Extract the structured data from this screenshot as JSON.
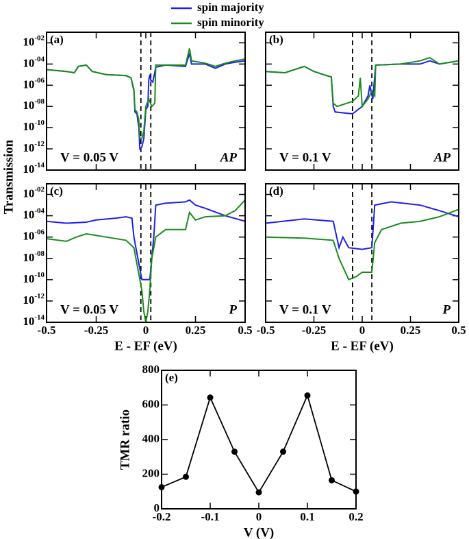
{
  "chart_data": [
    {
      "type": "line",
      "label": "(a)",
      "bias_label": "V = 0.05 V",
      "config_label": "AP",
      "ylabel": "Transmission",
      "log_y": true,
      "xlim": [
        -0.5,
        0.5
      ],
      "ylim": [
        1e-14,
        0.1
      ],
      "show_xticklabels": false,
      "show_yticklabels": true,
      "xticks": [
        -0.5,
        -0.25,
        0,
        0.25,
        0.5
      ],
      "yticks": [
        {
          "value": 1e-14,
          "label": "10-14"
        },
        {
          "value": 1e-12,
          "label": "10-12"
        },
        {
          "value": 1e-10,
          "label": "10-10"
        },
        {
          "value": 1e-08,
          "label": "10-08"
        },
        {
          "value": 1e-06,
          "label": "10-06"
        },
        {
          "value": 0.0001,
          "label": "10-04"
        },
        {
          "value": 0.01,
          "label": "10-02"
        }
      ],
      "vlines": [
        -0.025,
        0.025
      ],
      "series": [
        {
          "name": "spin majority",
          "color": "#1f1fee",
          "x": [
            -0.5,
            -0.4,
            -0.36,
            -0.34,
            -0.3,
            -0.27,
            -0.2,
            -0.1,
            -0.075,
            -0.06,
            -0.055,
            -0.045,
            -0.035,
            -0.03,
            -0.02,
            -0.01,
            0,
            0.01,
            0.015,
            0.02,
            0.025,
            0.035,
            0.05,
            0.1,
            0.2,
            0.22,
            0.23,
            0.3,
            0.35,
            0.4,
            0.45,
            0.5
          ],
          "values": [
            3e-05,
            2e-05,
            1.5e-05,
            6e-05,
            8e-05,
            2e-05,
            1e-05,
            8e-06,
            5e-06,
            3e-07,
            3e-09,
            2e-09,
            1e-10,
            1e-12,
            1.5e-12,
            1e-11,
            5e-09,
            1e-08,
            3e-06,
            1e-05,
            3e-06,
            2e-06,
            5e-05,
            8e-05,
            6e-05,
            0.001,
            0.0001,
            0.0001,
            4e-05,
            0.0001,
            0.00015,
            0.0002
          ]
        },
        {
          "name": "spin minority",
          "color": "#1a8c1a",
          "x": [
            -0.5,
            -0.4,
            -0.36,
            -0.34,
            -0.3,
            -0.27,
            -0.2,
            -0.1,
            -0.075,
            -0.06,
            -0.055,
            -0.045,
            -0.035,
            -0.03,
            -0.02,
            -0.01,
            0,
            0.01,
            0.015,
            0.03,
            0.045,
            0.05,
            0.1,
            0.2,
            0.22,
            0.23,
            0.3,
            0.35,
            0.4,
            0.45,
            0.5
          ],
          "values": [
            3e-05,
            2e-05,
            1.5e-05,
            6e-05,
            8e-05,
            2e-05,
            1e-05,
            8e-06,
            5e-06,
            4e-07,
            5e-09,
            3e-09,
            5e-10,
            1e-11,
            1e-11,
            5e-11,
            1e-08,
            3e-08,
            5e-08,
            1e-08,
            2e-08,
            8e-05,
            8e-05,
            8e-05,
            0.003,
            0.0002,
            0.00012,
            6e-05,
            0.00012,
            0.0002,
            0.0003
          ]
        }
      ]
    },
    {
      "type": "line",
      "label": "(b)",
      "bias_label": "V = 0.1 V",
      "config_label": "AP",
      "log_y": true,
      "xlim": [
        -0.5,
        0.5
      ],
      "ylim": [
        1e-14,
        0.1
      ],
      "show_xticklabels": false,
      "show_yticklabels": false,
      "xticks": [
        -0.5,
        -0.25,
        0,
        0.25,
        0.5
      ],
      "yticks": [
        1e-14,
        1e-12,
        1e-10,
        1e-08,
        1e-06,
        0.0001,
        0.01
      ],
      "vlines": [
        -0.05,
        0.05
      ],
      "series": [
        {
          "name": "spin majority",
          "color": "#1f1fee",
          "x": [
            -0.5,
            -0.4,
            -0.3,
            -0.25,
            -0.2,
            -0.16,
            -0.15,
            -0.14,
            -0.05,
            0,
            0.03,
            0.04,
            0.045,
            0.055,
            0.07,
            0.2,
            0.3,
            0.35,
            0.4,
            0.5
          ],
          "values": [
            2e-05,
            1.5e-05,
            6e-05,
            2e-05,
            1e-05,
            6e-06,
            1e-08,
            3e-09,
            2e-09,
            1e-08,
            1e-07,
            1e-06,
            3e-07,
            5e-08,
            8e-05,
            0.0001,
            0.0001,
            0.0002,
            0.0001,
            0.0002
          ]
        },
        {
          "name": "spin minority",
          "color": "#1a8c1a",
          "x": [
            -0.5,
            -0.4,
            -0.3,
            -0.25,
            -0.2,
            -0.16,
            -0.15,
            -0.13,
            -0.05,
            -0.02,
            -0.01,
            0,
            0.03,
            0.05,
            0.065,
            0.07,
            0.2,
            0.3,
            0.35,
            0.4,
            0.5
          ],
          "values": [
            2e-05,
            1.5e-05,
            6e-05,
            2e-05,
            1e-05,
            6e-06,
            2e-08,
            1e-08,
            3e-08,
            1e-07,
            5e-06,
            1e-08,
            5e-08,
            3e-07,
            1e-07,
            8e-05,
            0.0001,
            0.0002,
            0.0004,
            0.0001,
            0.0002
          ]
        }
      ]
    },
    {
      "type": "line",
      "label": "(c)",
      "bias_label": "V = 0.05 V",
      "config_label": "P",
      "xlabel": "E - EF (eV)",
      "log_y": true,
      "xlim": [
        -0.5,
        0.5
      ],
      "ylim": [
        1e-14,
        0.1
      ],
      "show_xticklabels": true,
      "show_yticklabels": true,
      "xticks": [
        -0.5,
        -0.25,
        0,
        0.25,
        0.5
      ],
      "yticks": [
        {
          "value": 1e-14,
          "label": "10-14"
        },
        {
          "value": 1e-12,
          "label": "10-12"
        },
        {
          "value": 1e-10,
          "label": "10-10"
        },
        {
          "value": 1e-08,
          "label": "10-08"
        },
        {
          "value": 1e-06,
          "label": "10-06"
        },
        {
          "value": 0.0001,
          "label": "10-04"
        },
        {
          "value": 0.01,
          "label": "10-02"
        }
      ],
      "vlines": [
        -0.025,
        0.025
      ],
      "series": [
        {
          "name": "spin majority",
          "color": "#1f1fee",
          "x": [
            -0.5,
            -0.4,
            -0.3,
            -0.25,
            -0.15,
            -0.1,
            -0.07,
            -0.06,
            -0.04,
            -0.02,
            0,
            0.02,
            0.04,
            0.05,
            0.1,
            0.2,
            0.22,
            0.25,
            0.3,
            0.4,
            0.5
          ],
          "values": [
            3e-05,
            2e-05,
            2.5e-05,
            4e-05,
            6e-05,
            8e-05,
            6e-05,
            1e-06,
            1e-08,
            1e-10,
            1e-10,
            1e-10,
            1e-06,
            0.001,
            0.0015,
            0.002,
            0.003,
            0.001,
            0.0005,
            0.0001,
            3e-05
          ]
        },
        {
          "name": "spin minority",
          "color": "#1a8c1a",
          "x": [
            -0.5,
            -0.4,
            -0.35,
            -0.3,
            -0.2,
            -0.1,
            -0.06,
            -0.04,
            -0.02,
            -0.01,
            0,
            0.01,
            0.02,
            0.03,
            0.05,
            0.1,
            0.2,
            0.22,
            0.25,
            0.3,
            0.4,
            0.45,
            0.5
          ],
          "values": [
            7e-07,
            4e-07,
            1e-06,
            2e-06,
            1e-06,
            5e-07,
            1e-07,
            1e-09,
            1e-11,
            1e-13,
            1e-14,
            1e-13,
            1e-11,
            1e-08,
            1e-06,
            5e-06,
            5e-06,
            0.0002,
            4e-05,
            8e-05,
            0.0001,
            0.0003,
            0.003
          ]
        }
      ]
    },
    {
      "type": "line",
      "label": "(d)",
      "bias_label": "V = 0.1 V",
      "config_label": "P",
      "xlabel": "E - EF (eV)",
      "log_y": true,
      "xlim": [
        -0.5,
        0.5
      ],
      "ylim": [
        1e-14,
        0.1
      ],
      "show_xticklabels": true,
      "show_yticklabels": false,
      "xticks": [
        -0.5,
        -0.25,
        0,
        0.25,
        0.5
      ],
      "yticks": [
        1e-14,
        1e-12,
        1e-10,
        1e-08,
        1e-06,
        0.0001,
        0.01
      ],
      "vlines": [
        -0.05,
        0.05
      ],
      "series": [
        {
          "name": "spin majority",
          "color": "#1f1fee",
          "x": [
            -0.5,
            -0.3,
            -0.15,
            -0.12,
            -0.1,
            -0.07,
            0,
            0.05,
            0.065,
            0.15,
            0.3,
            0.4,
            0.5
          ],
          "values": [
            2e-05,
            5e-05,
            3e-05,
            1e-07,
            1e-06,
            1e-07,
            7e-08,
            1e-07,
            0.001,
            0.002,
            0.001,
            0.0003,
            8e-05
          ]
        },
        {
          "name": "spin minority",
          "color": "#1a8c1a",
          "x": [
            -0.5,
            -0.3,
            -0.15,
            -0.12,
            -0.07,
            -0.03,
            0,
            0.05,
            0.065,
            0.1,
            0.2,
            0.3,
            0.4,
            0.5
          ],
          "values": [
            1e-06,
            8e-07,
            5e-07,
            1e-08,
            1e-10,
            2e-10,
            5e-10,
            5e-10,
            3e-07,
            5e-06,
            2e-05,
            3e-05,
            8e-05,
            0.0004
          ]
        }
      ]
    },
    {
      "type": "line",
      "label": "(e)",
      "xlabel": "V (V)",
      "ylabel": "TMR ratio",
      "markers": true,
      "color": "#000000",
      "log_y": false,
      "xlim": [
        -0.2,
        0.2
      ],
      "ylim": [
        0,
        800
      ],
      "show_xticklabels": true,
      "show_yticklabels": true,
      "xticks": [
        -0.2,
        -0.1,
        0,
        0.1,
        0.2
      ],
      "yticks": [
        0,
        200,
        400,
        600,
        800
      ],
      "x": [
        -0.2,
        -0.15,
        -0.1,
        -0.05,
        0,
        0.05,
        0.1,
        0.15,
        0.2
      ],
      "values": [
        125,
        185,
        643,
        330,
        95,
        330,
        655,
        165,
        100
      ]
    }
  ]
}
